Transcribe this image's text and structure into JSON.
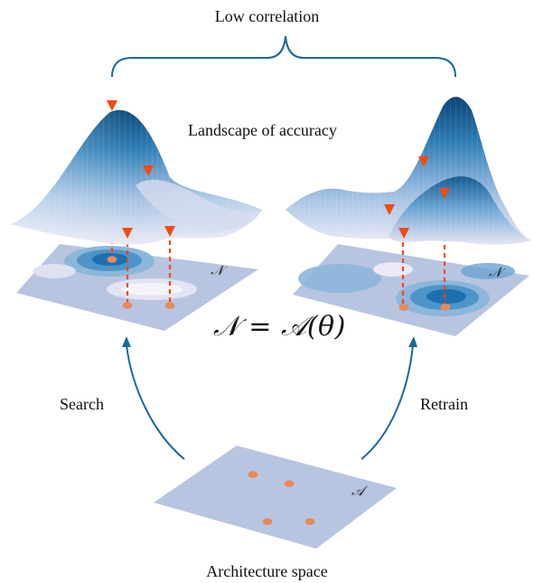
{
  "labels": {
    "top": "Low correlation",
    "landscape": "Landscape of accuracy",
    "search": "Search",
    "retrain": "Retrain",
    "architecture": "Architecture space",
    "equation": "𝒩 = 𝒜(θ)",
    "network_symbol": "𝒩",
    "arch_symbol": "𝒜"
  },
  "colors": {
    "plane": "#b8c5e1",
    "arrow": "#1a6a9a",
    "marker": "#f24a12",
    "dot": "#e8895a",
    "contour_dark": "#1c70ad",
    "contour_mid": "#4f94c8",
    "contour_light": "#8db6db",
    "surface_top": "#0d4f83",
    "surface_low": "#e6e6f3"
  }
}
